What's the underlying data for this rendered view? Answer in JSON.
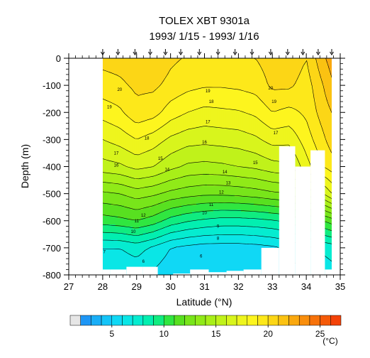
{
  "chart_data": {
    "type": "heatmap",
    "title": "TOLEX XBT 9301a",
    "subtitle": "1993/ 1/15 - 1993/ 1/16",
    "xlabel": "Latitude (°N)",
    "ylabel": "Depth (m)",
    "xlim": [
      27,
      35
    ],
    "ylim": [
      -800,
      0
    ],
    "x_ticks": [
      "27",
      "28",
      "29",
      "30",
      "31",
      "32",
      "33",
      "34",
      "35"
    ],
    "y_ticks": [
      "0",
      "-100",
      "-200",
      "-300",
      "-400",
      "-500",
      "-600",
      "-700",
      "-800"
    ],
    "grid": false,
    "station_latitudes": [
      28.0,
      28.45,
      28.95,
      29.4,
      29.85,
      30.3,
      30.85,
      31.4,
      31.9,
      32.4,
      32.95,
      33.45,
      33.9,
      34.35,
      34.75
    ],
    "station_max_depth": [
      -780,
      -780,
      -770,
      -770,
      -800,
      -795,
      -780,
      -790,
      -785,
      -780,
      -700,
      -325,
      -400,
      -340,
      -780
    ],
    "temperature_field": {
      "units": "°C",
      "latitudes": [
        28.0,
        28.5,
        29.0,
        29.5,
        30.0,
        30.5,
        31.0,
        31.5,
        32.0,
        32.5,
        33.0,
        33.5,
        34.0,
        34.5,
        34.75
      ],
      "depths": [
        0,
        -100,
        -200,
        -300,
        -400,
        -500,
        -600,
        -700,
        -800
      ],
      "values": [
        [
          20.3,
          20.4,
          20.6,
          20.8,
          20.2,
          19.9,
          19.8,
          19.8,
          19.9,
          20.0,
          20.5,
          20.8,
          20.0,
          21.8,
          22.5
        ],
        [
          19.6,
          19.8,
          20.2,
          20.2,
          19.7,
          19.3,
          19.1,
          19.1,
          19.2,
          19.4,
          20.2,
          20.2,
          19.5,
          21.0,
          21.8
        ],
        [
          18.4,
          18.8,
          19.7,
          19.4,
          18.5,
          18.0,
          17.7,
          17.8,
          17.9,
          18.2,
          19.0,
          18.7,
          19.2,
          20.5,
          21.0
        ],
        [
          17.0,
          17.4,
          18.0,
          17.5,
          16.8,
          16.4,
          16.3,
          16.4,
          16.5,
          16.8,
          17.4,
          17.3,
          18.5,
          19.8,
          20.5
        ],
        [
          15.6,
          15.8,
          16.3,
          16.0,
          15.3,
          14.8,
          14.7,
          14.8,
          15.0,
          15.2,
          15.6,
          15.8,
          17.6,
          19.0,
          19.5
        ],
        [
          12.8,
          13.0,
          13.5,
          13.2,
          12.7,
          12.4,
          12.2,
          12.2,
          12.3,
          12.5,
          12.8,
          13.0,
          14.0,
          16.0,
          17.0
        ],
        [
          10.5,
          10.7,
          11.0,
          10.5,
          9.6,
          9.1,
          8.8,
          8.6,
          8.6,
          8.7,
          8.9,
          9.2,
          10.0,
          11.0,
          11.5
        ],
        [
          7.0,
          7.0,
          7.4,
          6.8,
          6.0,
          5.7,
          5.5,
          5.5,
          5.5,
          5.6,
          5.8,
          6.2,
          6.8,
          7.2,
          7.4
        ],
        [
          6.3,
          6.2,
          6.3,
          5.8,
          5.3,
          5.1,
          5.0,
          5.0,
          5.0,
          5.1,
          5.2,
          5.5,
          6.0,
          6.4,
          6.6
        ]
      ]
    },
    "contour_labels": [
      {
        "text": "20",
        "lat": 28.5,
        "depth": -115
      },
      {
        "text": "19",
        "lat": 31.1,
        "depth": -120
      },
      {
        "text": "18",
        "lat": 31.2,
        "depth": -160
      },
      {
        "text": "19",
        "lat": 28.2,
        "depth": -180
      },
      {
        "text": "17",
        "lat": 31.1,
        "depth": -235
      },
      {
        "text": "18",
        "lat": 29.3,
        "depth": -295
      },
      {
        "text": "16",
        "lat": 31.0,
        "depth": -310
      },
      {
        "text": "17",
        "lat": 28.4,
        "depth": -350
      },
      {
        "text": "15",
        "lat": 29.7,
        "depth": -370
      },
      {
        "text": "16",
        "lat": 28.4,
        "depth": -395
      },
      {
        "text": "15",
        "lat": 32.5,
        "depth": -385
      },
      {
        "text": "14",
        "lat": 29.9,
        "depth": -410
      },
      {
        "text": "14",
        "lat": 31.6,
        "depth": -420
      },
      {
        "text": "13",
        "lat": 31.7,
        "depth": -460
      },
      {
        "text": "12",
        "lat": 31.5,
        "depth": -495
      },
      {
        "text": "11",
        "lat": 31.2,
        "depth": -540
      },
      {
        "text": "10",
        "lat": 31.0,
        "depth": -570
      },
      {
        "text": "12",
        "lat": 29.2,
        "depth": -580
      },
      {
        "text": "11",
        "lat": 29.0,
        "depth": -600
      },
      {
        "text": "9",
        "lat": 31.4,
        "depth": -620
      },
      {
        "text": "10",
        "lat": 28.9,
        "depth": -640
      },
      {
        "text": "8",
        "lat": 31.4,
        "depth": -665
      },
      {
        "text": "7",
        "lat": 28.05,
        "depth": -715
      },
      {
        "text": "6",
        "lat": 30.9,
        "depth": -730
      },
      {
        "text": "6",
        "lat": 29.2,
        "depth": -750
      },
      {
        "text": "20",
        "lat": 32.95,
        "depth": -110
      },
      {
        "text": "19",
        "lat": 33.05,
        "depth": -160
      },
      {
        "text": "17",
        "lat": 33.1,
        "depth": -275
      }
    ],
    "colorbar": {
      "units": "(°C)",
      "min": 2,
      "max": 27,
      "step": 1,
      "tick_labels": [
        "5",
        "10",
        "15",
        "20",
        "25"
      ],
      "tick_values": [
        5,
        10,
        15,
        20,
        25
      ],
      "colors": [
        "#e6e6e6",
        "#1e96f5",
        "#19aef7",
        "#14c4f8",
        "#10d8f5",
        "#0ae6e6",
        "#05ecd0",
        "#02efb0",
        "#10ec80",
        "#30e640",
        "#58e020",
        "#78e51a",
        "#90ea18",
        "#a8ef18",
        "#c0f21a",
        "#d8f51c",
        "#eef51d",
        "#fdf51e",
        "#fde81a",
        "#fcd616",
        "#fbc212",
        "#faa80f",
        "#f98e0c",
        "#f7720a",
        "#f55a08",
        "#f44208"
      ]
    }
  }
}
